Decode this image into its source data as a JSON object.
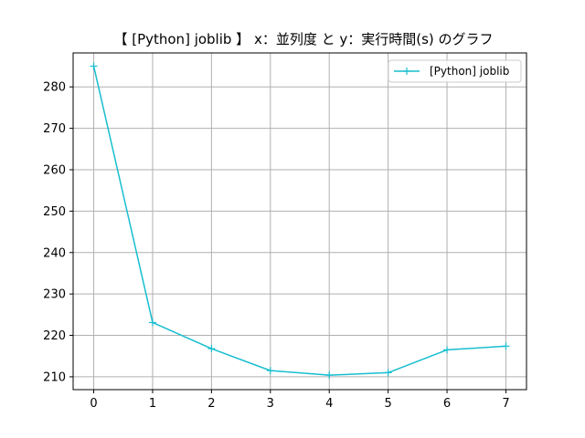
{
  "chart_data": {
    "type": "line",
    "title": "【 [Python] joblib 】 x：並列度 と y：実行時間(s) のグラフ",
    "xlabel": "",
    "ylabel": "",
    "x": [
      0,
      1,
      2,
      3,
      4,
      5,
      6,
      7
    ],
    "xticks": [
      "0",
      "1",
      "2",
      "3",
      "4",
      "5",
      "6",
      "7"
    ],
    "yticks": [
      "210",
      "220",
      "230",
      "240",
      "250",
      "260",
      "270",
      "280"
    ],
    "xlim": [
      -0.35,
      7.35
    ],
    "ylim": [
      206.9,
      288.2
    ],
    "grid": true,
    "legend_position": "top-right",
    "series": [
      {
        "name": "[Python] joblib",
        "color": "#17becf",
        "marker": "plus",
        "values": [
          285.0,
          223.1,
          216.8,
          211.5,
          210.4,
          211.0,
          216.5,
          217.4
        ]
      }
    ]
  }
}
